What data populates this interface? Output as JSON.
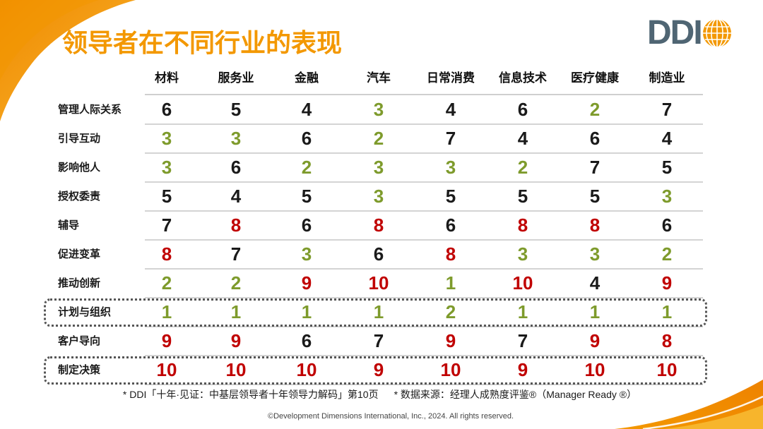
{
  "title": "领导者在不同行业的表现",
  "logo": {
    "text": "DDI",
    "icon": "globe-icon"
  },
  "palette": {
    "accent": "#F39800",
    "logo_text": "#4F6573",
    "black": "#1a1a1a",
    "green": "#7E9B2C",
    "red": "#C00000"
  },
  "table": {
    "columns": [
      "材料",
      "服务业",
      "金融",
      "汽车",
      "日常消费",
      "信息技术",
      "医疗健康",
      "制造业"
    ],
    "rows": [
      {
        "label": "管理人际关系",
        "highlighted": false,
        "cells": [
          {
            "value": 6,
            "color": "black"
          },
          {
            "value": 5,
            "color": "black"
          },
          {
            "value": 4,
            "color": "black"
          },
          {
            "value": 3,
            "color": "green"
          },
          {
            "value": 4,
            "color": "black"
          },
          {
            "value": 6,
            "color": "black"
          },
          {
            "value": 2,
            "color": "green"
          },
          {
            "value": 7,
            "color": "black"
          }
        ]
      },
      {
        "label": "引导互动",
        "highlighted": false,
        "cells": [
          {
            "value": 3,
            "color": "green"
          },
          {
            "value": 3,
            "color": "green"
          },
          {
            "value": 6,
            "color": "black"
          },
          {
            "value": 2,
            "color": "green"
          },
          {
            "value": 7,
            "color": "black"
          },
          {
            "value": 4,
            "color": "black"
          },
          {
            "value": 6,
            "color": "black"
          },
          {
            "value": 4,
            "color": "black"
          }
        ]
      },
      {
        "label": "影响他人",
        "highlighted": false,
        "cells": [
          {
            "value": 3,
            "color": "green"
          },
          {
            "value": 6,
            "color": "black"
          },
          {
            "value": 2,
            "color": "green"
          },
          {
            "value": 3,
            "color": "green"
          },
          {
            "value": 3,
            "color": "green"
          },
          {
            "value": 2,
            "color": "green"
          },
          {
            "value": 7,
            "color": "black"
          },
          {
            "value": 5,
            "color": "black"
          }
        ]
      },
      {
        "label": "授权委责",
        "highlighted": false,
        "cells": [
          {
            "value": 5,
            "color": "black"
          },
          {
            "value": 4,
            "color": "black"
          },
          {
            "value": 5,
            "color": "black"
          },
          {
            "value": 3,
            "color": "green"
          },
          {
            "value": 5,
            "color": "black"
          },
          {
            "value": 5,
            "color": "black"
          },
          {
            "value": 5,
            "color": "black"
          },
          {
            "value": 3,
            "color": "green"
          }
        ]
      },
      {
        "label": "辅导",
        "highlighted": false,
        "cells": [
          {
            "value": 7,
            "color": "black"
          },
          {
            "value": 8,
            "color": "red"
          },
          {
            "value": 6,
            "color": "black"
          },
          {
            "value": 8,
            "color": "red"
          },
          {
            "value": 6,
            "color": "black"
          },
          {
            "value": 8,
            "color": "red"
          },
          {
            "value": 8,
            "color": "red"
          },
          {
            "value": 6,
            "color": "black"
          }
        ]
      },
      {
        "label": "促进变革",
        "highlighted": false,
        "cells": [
          {
            "value": 8,
            "color": "red"
          },
          {
            "value": 7,
            "color": "black"
          },
          {
            "value": 3,
            "color": "green"
          },
          {
            "value": 6,
            "color": "black"
          },
          {
            "value": 8,
            "color": "red"
          },
          {
            "value": 3,
            "color": "green"
          },
          {
            "value": 3,
            "color": "green"
          },
          {
            "value": 2,
            "color": "green"
          }
        ]
      },
      {
        "label": "推动创新",
        "highlighted": false,
        "cells": [
          {
            "value": 2,
            "color": "green"
          },
          {
            "value": 2,
            "color": "green"
          },
          {
            "value": 9,
            "color": "red"
          },
          {
            "value": 10,
            "color": "red"
          },
          {
            "value": 1,
            "color": "green"
          },
          {
            "value": 10,
            "color": "red"
          },
          {
            "value": 4,
            "color": "black"
          },
          {
            "value": 9,
            "color": "red"
          }
        ]
      },
      {
        "label": "计划与组织",
        "highlighted": true,
        "cells": [
          {
            "value": 1,
            "color": "green"
          },
          {
            "value": 1,
            "color": "green"
          },
          {
            "value": 1,
            "color": "green"
          },
          {
            "value": 1,
            "color": "green"
          },
          {
            "value": 2,
            "color": "green"
          },
          {
            "value": 1,
            "color": "green"
          },
          {
            "value": 1,
            "color": "green"
          },
          {
            "value": 1,
            "color": "green"
          }
        ]
      },
      {
        "label": "客户导向",
        "highlighted": false,
        "cells": [
          {
            "value": 9,
            "color": "red"
          },
          {
            "value": 9,
            "color": "red"
          },
          {
            "value": 6,
            "color": "black"
          },
          {
            "value": 7,
            "color": "black"
          },
          {
            "value": 9,
            "color": "red"
          },
          {
            "value": 7,
            "color": "black"
          },
          {
            "value": 9,
            "color": "red"
          },
          {
            "value": 8,
            "color": "red"
          }
        ]
      },
      {
        "label": "制定决策",
        "highlighted": true,
        "cells": [
          {
            "value": 10,
            "color": "red"
          },
          {
            "value": 10,
            "color": "red"
          },
          {
            "value": 10,
            "color": "red"
          },
          {
            "value": 9,
            "color": "red"
          },
          {
            "value": 10,
            "color": "red"
          },
          {
            "value": 9,
            "color": "red"
          },
          {
            "value": 10,
            "color": "red"
          },
          {
            "value": 10,
            "color": "red"
          }
        ]
      }
    ]
  },
  "footnotes": [
    "* DDI「十年·见证：中基层领导者十年领导力解码」第10页",
    "* 数据来源：经理人成熟度评鉴®（Manager Ready ®）"
  ],
  "copyright": "©Development Dimensions International, Inc., 2024. All rights reserved."
}
